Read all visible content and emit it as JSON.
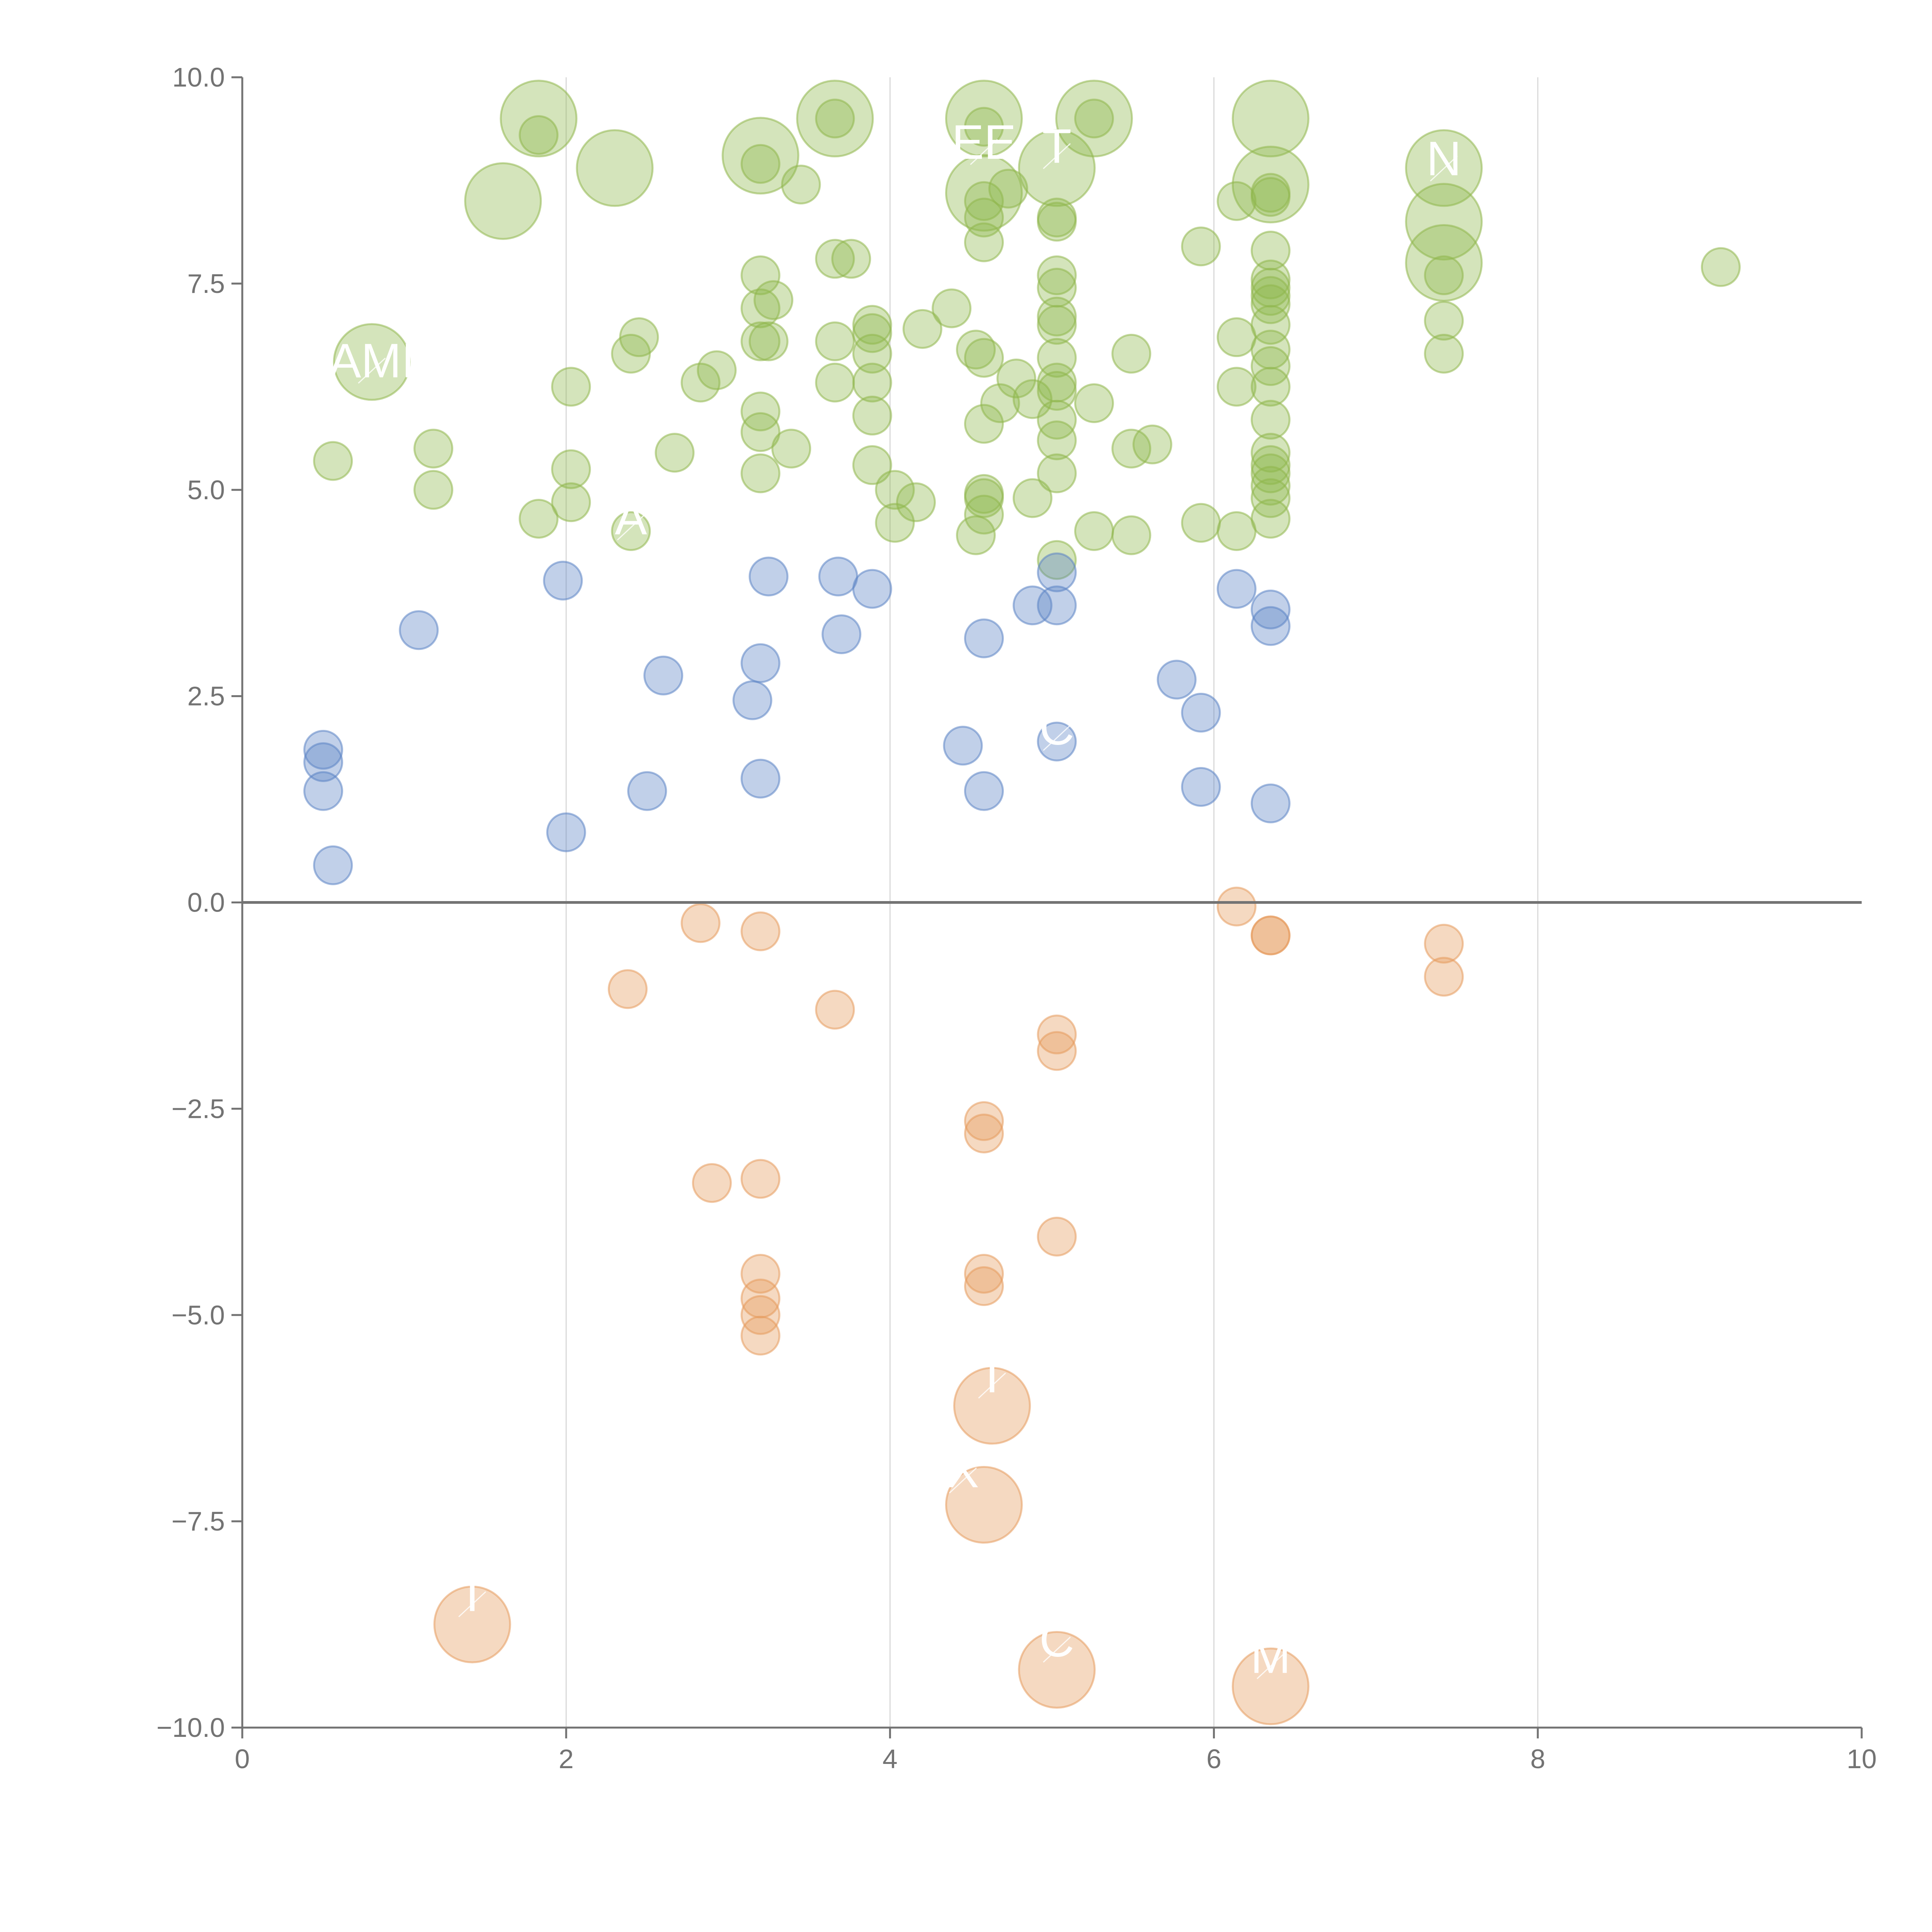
{
  "chart_data": {
    "type": "scatter",
    "title": "",
    "xlabel": "",
    "ylabel": "",
    "xlim": [
      0,
      10
    ],
    "ylim": [
      -10,
      10
    ],
    "grid": "vertical",
    "x_ticks": [
      0,
      2,
      4,
      6,
      8,
      10
    ],
    "y_ticks": [
      -10,
      -7.5,
      -5,
      -2.5,
      0,
      2.5,
      5,
      7.5,
      10
    ],
    "x_tick_labels": [
      "0",
      "2",
      "4",
      "6",
      "8",
      "10"
    ],
    "y_tick_labels": [
      "−10.0",
      "−7.5",
      "−5.0",
      "−2.5",
      "0.0",
      "2.5",
      "5.0",
      "7.5",
      "10.0"
    ],
    "reference_line": {
      "y": 0
    },
    "colors": {
      "positive": "#8fb74d",
      "neutral": "#5b84c4",
      "negative": "#e69a5c",
      "axis": "#737373",
      "grid": "#d9d9d9",
      "label": "#ffffff"
    },
    "series": [
      {
        "name": "positive",
        "color": "#8fb74d",
        "points": [
          [
            1.83,
            9.5,
            2
          ],
          [
            1.83,
            9.3,
            1
          ],
          [
            1.61,
            8.5,
            2
          ],
          [
            2.3,
            8.9,
            2
          ],
          [
            3.2,
            9.05,
            2
          ],
          [
            3.2,
            8.95,
            1
          ],
          [
            3.45,
            8.7,
            1
          ],
          [
            3.66,
            9.5,
            2
          ],
          [
            3.66,
            9.5,
            1
          ],
          [
            4.58,
            9.5,
            2
          ],
          [
            4.58,
            9.4,
            1
          ],
          [
            4.58,
            8.6,
            2
          ],
          [
            4.58,
            8.5,
            1
          ],
          [
            4.58,
            8.3,
            1
          ],
          [
            4.58,
            8.0,
            1
          ],
          [
            4.73,
            8.65,
            1
          ],
          [
            5.03,
            8.9,
            2
          ],
          [
            5.03,
            8.3,
            1
          ],
          [
            5.03,
            8.25,
            1
          ],
          [
            5.26,
            9.5,
            2
          ],
          [
            5.26,
            9.5,
            1
          ],
          [
            6.35,
            9.5,
            2
          ],
          [
            6.35,
            8.7,
            2
          ],
          [
            6.35,
            8.6,
            1
          ],
          [
            6.35,
            8.55,
            1
          ],
          [
            6.14,
            8.5,
            1
          ],
          [
            5.92,
            7.95,
            1
          ],
          [
            6.35,
            7.9,
            1
          ],
          [
            7.42,
            8.9,
            2
          ],
          [
            7.42,
            8.25,
            2
          ],
          [
            7.42,
            7.75,
            2
          ],
          [
            7.42,
            7.6,
            1
          ],
          [
            7.42,
            7.05,
            1
          ],
          [
            7.42,
            6.65,
            1
          ],
          [
            9.13,
            7.7,
            1
          ],
          [
            0.8,
            6.55,
            2
          ],
          [
            0.56,
            5.35,
            1
          ],
          [
            1.18,
            5.5,
            1
          ],
          [
            1.18,
            5.0,
            1
          ],
          [
            1.83,
            4.65,
            1
          ],
          [
            2.03,
            6.25,
            1
          ],
          [
            2.03,
            5.25,
            1
          ],
          [
            2.03,
            4.85,
            1
          ],
          [
            2.4,
            4.5,
            1
          ],
          [
            2.4,
            6.65,
            1
          ],
          [
            2.45,
            6.85,
            1
          ],
          [
            2.67,
            5.45,
            1
          ],
          [
            2.83,
            6.3,
            1
          ],
          [
            2.93,
            6.45,
            1
          ],
          [
            3.2,
            7.6,
            1
          ],
          [
            3.2,
            7.2,
            1
          ],
          [
            3.2,
            6.8,
            1
          ],
          [
            3.25,
            6.8,
            1
          ],
          [
            3.28,
            7.3,
            1
          ],
          [
            3.2,
            5.95,
            1
          ],
          [
            3.2,
            5.7,
            1
          ],
          [
            3.2,
            5.2,
            1
          ],
          [
            3.39,
            5.5,
            1
          ],
          [
            3.66,
            7.8,
            1
          ],
          [
            3.66,
            6.8,
            1
          ],
          [
            3.66,
            6.3,
            1
          ],
          [
            3.76,
            7.8,
            1
          ],
          [
            3.89,
            7.0,
            1
          ],
          [
            3.89,
            6.9,
            1
          ],
          [
            3.89,
            6.65,
            1
          ],
          [
            3.89,
            6.3,
            1
          ],
          [
            3.89,
            5.9,
            1
          ],
          [
            3.89,
            5.3,
            1
          ],
          [
            4.03,
            5.0,
            1
          ],
          [
            4.03,
            4.6,
            1
          ],
          [
            4.16,
            4.85,
            1
          ],
          [
            4.2,
            6.95,
            1
          ],
          [
            4.38,
            7.2,
            1
          ],
          [
            4.53,
            6.7,
            1
          ],
          [
            4.53,
            4.45,
            1
          ],
          [
            4.58,
            6.6,
            1
          ],
          [
            4.58,
            5.8,
            1
          ],
          [
            4.58,
            4.95,
            1
          ],
          [
            4.58,
            4.9,
            1
          ],
          [
            4.58,
            4.7,
            1
          ],
          [
            4.68,
            6.05,
            1
          ],
          [
            4.78,
            6.35,
            1
          ],
          [
            4.88,
            6.1,
            1
          ],
          [
            4.88,
            4.9,
            1
          ],
          [
            5.03,
            7.6,
            1
          ],
          [
            5.03,
            7.45,
            1
          ],
          [
            5.03,
            7.1,
            1
          ],
          [
            5.03,
            7.0,
            1
          ],
          [
            5.03,
            6.6,
            1
          ],
          [
            5.03,
            6.3,
            1
          ],
          [
            5.03,
            6.2,
            1
          ],
          [
            5.03,
            5.85,
            1
          ],
          [
            5.03,
            5.6,
            1
          ],
          [
            5.03,
            5.2,
            1
          ],
          [
            5.03,
            4.15,
            1
          ],
          [
            5.26,
            6.05,
            1
          ],
          [
            5.26,
            4.5,
            1
          ],
          [
            5.49,
            6.65,
            1
          ],
          [
            5.49,
            5.5,
            1
          ],
          [
            5.49,
            4.45,
            1
          ],
          [
            5.62,
            5.55,
            1
          ],
          [
            5.92,
            4.6,
            1
          ],
          [
            6.14,
            6.85,
            1
          ],
          [
            6.14,
            6.25,
            1
          ],
          [
            6.14,
            4.5,
            1
          ],
          [
            6.35,
            7.55,
            1
          ],
          [
            6.35,
            7.45,
            1
          ],
          [
            6.35,
            7.35,
            1
          ],
          [
            6.35,
            7.25,
            1
          ],
          [
            6.35,
            7.0,
            1
          ],
          [
            6.35,
            6.7,
            1
          ],
          [
            6.35,
            6.5,
            1
          ],
          [
            6.35,
            6.25,
            1
          ],
          [
            6.35,
            5.85,
            1
          ],
          [
            6.35,
            5.45,
            1
          ],
          [
            6.35,
            5.3,
            1
          ],
          [
            6.35,
            5.2,
            1
          ],
          [
            6.35,
            5.05,
            1
          ],
          [
            6.35,
            4.9,
            1
          ],
          [
            6.35,
            4.65,
            1
          ]
        ]
      },
      {
        "name": "neutral",
        "color": "#5b84c4",
        "points": [
          [
            0.5,
            1.85,
            1
          ],
          [
            0.5,
            1.7,
            1
          ],
          [
            0.5,
            1.35,
            1
          ],
          [
            0.56,
            0.45,
            1
          ],
          [
            1.09,
            3.3,
            1
          ],
          [
            1.98,
            3.9,
            1
          ],
          [
            2.0,
            0.85,
            1
          ],
          [
            2.5,
            1.35,
            1
          ],
          [
            2.6,
            2.75,
            1
          ],
          [
            3.15,
            2.45,
            1
          ],
          [
            3.2,
            2.9,
            1
          ],
          [
            3.2,
            1.5,
            1
          ],
          [
            3.25,
            3.95,
            1
          ],
          [
            3.68,
            3.95,
            1
          ],
          [
            3.7,
            3.25,
            1
          ],
          [
            3.89,
            3.8,
            1
          ],
          [
            4.45,
            1.9,
            1
          ],
          [
            4.58,
            3.2,
            1
          ],
          [
            4.58,
            1.35,
            1
          ],
          [
            4.88,
            3.6,
            1
          ],
          [
            5.03,
            4.0,
            1
          ],
          [
            5.03,
            3.6,
            1
          ],
          [
            5.03,
            1.95,
            1
          ],
          [
            5.77,
            2.7,
            1
          ],
          [
            5.92,
            2.3,
            1
          ],
          [
            5.92,
            1.4,
            1
          ],
          [
            6.14,
            3.8,
            1
          ],
          [
            6.35,
            3.55,
            1
          ],
          [
            6.35,
            3.35,
            1
          ],
          [
            6.35,
            1.2,
            1
          ]
        ]
      },
      {
        "name": "negative",
        "color": "#e69a5c",
        "points": [
          [
            2.83,
            -0.25,
            1
          ],
          [
            3.2,
            -0.35,
            1
          ],
          [
            2.38,
            -1.05,
            1
          ],
          [
            3.66,
            -1.3,
            1
          ],
          [
            6.14,
            -0.05,
            1
          ],
          [
            6.35,
            -0.4,
            1
          ],
          [
            6.35,
            -0.4,
            1
          ],
          [
            7.42,
            -0.5,
            1
          ],
          [
            7.42,
            -0.9,
            1
          ],
          [
            5.03,
            -1.6,
            1
          ],
          [
            5.03,
            -1.8,
            1
          ],
          [
            4.58,
            -2.65,
            1
          ],
          [
            4.58,
            -2.8,
            1
          ],
          [
            2.9,
            -3.4,
            1
          ],
          [
            3.2,
            -3.35,
            1
          ],
          [
            5.03,
            -4.05,
            1
          ],
          [
            3.2,
            -4.5,
            1
          ],
          [
            3.2,
            -4.8,
            1
          ],
          [
            3.2,
            -5.0,
            1
          ],
          [
            3.2,
            -5.25,
            1
          ],
          [
            4.58,
            -4.5,
            1
          ],
          [
            4.58,
            -4.65,
            1
          ],
          [
            4.63,
            -6.1,
            2
          ],
          [
            4.58,
            -7.3,
            2
          ],
          [
            1.42,
            -8.75,
            2
          ],
          [
            5.03,
            -9.3,
            2
          ],
          [
            6.35,
            -9.5,
            2
          ]
        ]
      }
    ],
    "annotations": [
      {
        "text": "AMI",
        "x": 0.8,
        "y": 6.55
      },
      {
        "text": "EE",
        "x": 4.58,
        "y": 9.2
      },
      {
        "text": "T",
        "x": 5.03,
        "y": 9.15
      },
      {
        "text": "N",
        "x": 7.42,
        "y": 9.0
      },
      {
        "text": "A",
        "x": 2.4,
        "y": 4.65
      },
      {
        "text": "C",
        "x": 5.03,
        "y": 2.1
      },
      {
        "text": "T",
        "x": 4.63,
        "y": -5.75
      },
      {
        "text": "X",
        "x": 4.45,
        "y": -6.9
      },
      {
        "text": "T",
        "x": 1.42,
        "y": -8.4
      },
      {
        "text": "C",
        "x": 5.03,
        "y": -8.95
      },
      {
        "text": "M",
        "x": 6.35,
        "y": -9.15
      }
    ]
  }
}
